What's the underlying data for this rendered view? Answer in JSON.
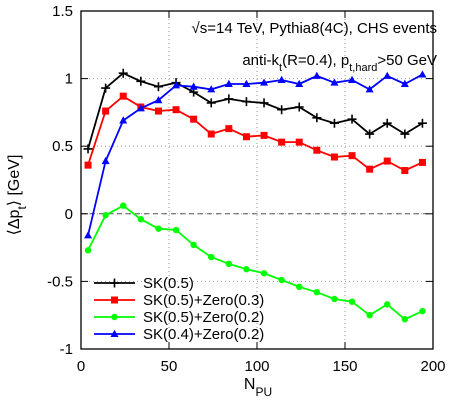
{
  "chart_data": {
    "type": "line",
    "annotations": {
      "line1": "√s=14 TeV, Pythia8(4C), CHS events",
      "line2_main": "anti-k",
      "line2_sub_t": "t",
      "line2_mid": "(R=0.4), p",
      "line2_sub_hard": "t,hard",
      "line2_end": ">50 GeV"
    },
    "xlabel_main": "N",
    "xlabel_sub": "PU",
    "ylabel": "⟨Δp",
    "ylabel_sub": "t",
    "ylabel_end": "⟩ [GeV]",
    "xlim": [
      0,
      200
    ],
    "ylim": [
      -1,
      1.5
    ],
    "xticks": [
      0,
      50,
      100,
      150,
      200
    ],
    "yticks": [
      -1,
      -0.5,
      0,
      0.5,
      1,
      1.5
    ],
    "xtick_labels": [
      "0",
      "50",
      "100",
      "150",
      "200"
    ],
    "ytick_labels": [
      "-1",
      "-0.5",
      "0",
      "0.5",
      "1",
      "1.5"
    ],
    "grid": true,
    "legend_position": "bottom-left",
    "x": [
      4,
      14,
      24,
      34,
      44,
      54,
      64,
      74,
      84,
      94,
      104,
      114,
      124,
      134,
      144,
      154,
      164,
      174,
      184,
      194
    ],
    "series": [
      {
        "name": "SK(0.5)",
        "color": "#000000",
        "marker": "plus",
        "values": [
          0.48,
          0.93,
          1.04,
          0.98,
          0.94,
          0.97,
          0.9,
          0.82,
          0.85,
          0.83,
          0.82,
          0.77,
          0.79,
          0.71,
          0.67,
          0.7,
          0.59,
          0.67,
          0.59,
          0.67
        ]
      },
      {
        "name": "SK(0.5)+Zero(0.3)",
        "color": "#ff0000",
        "marker": "square",
        "values": [
          0.36,
          0.76,
          0.87,
          0.79,
          0.76,
          0.77,
          0.7,
          0.59,
          0.63,
          0.57,
          0.58,
          0.53,
          0.53,
          0.47,
          0.42,
          0.43,
          0.33,
          0.39,
          0.32,
          0.38
        ]
      },
      {
        "name": "SK(0.5)+Zero(0.2)",
        "color": "#00ff00",
        "marker": "circle",
        "values": [
          -0.27,
          -0.01,
          0.06,
          -0.04,
          -0.11,
          -0.12,
          -0.23,
          -0.32,
          -0.37,
          -0.41,
          -0.44,
          -0.49,
          -0.54,
          -0.58,
          -0.63,
          -0.65,
          -0.75,
          -0.67,
          -0.78,
          -0.72
        ]
      },
      {
        "name": "SK(0.4)+Zero(0.2)",
        "color": "#0000ff",
        "marker": "triangle",
        "values": [
          -0.16,
          0.39,
          0.69,
          0.78,
          0.84,
          0.95,
          0.94,
          0.92,
          0.96,
          0.96,
          0.97,
          0.99,
          0.96,
          1.02,
          0.97,
          0.99,
          0.92,
          1.02,
          0.96,
          1.03
        ]
      }
    ]
  }
}
